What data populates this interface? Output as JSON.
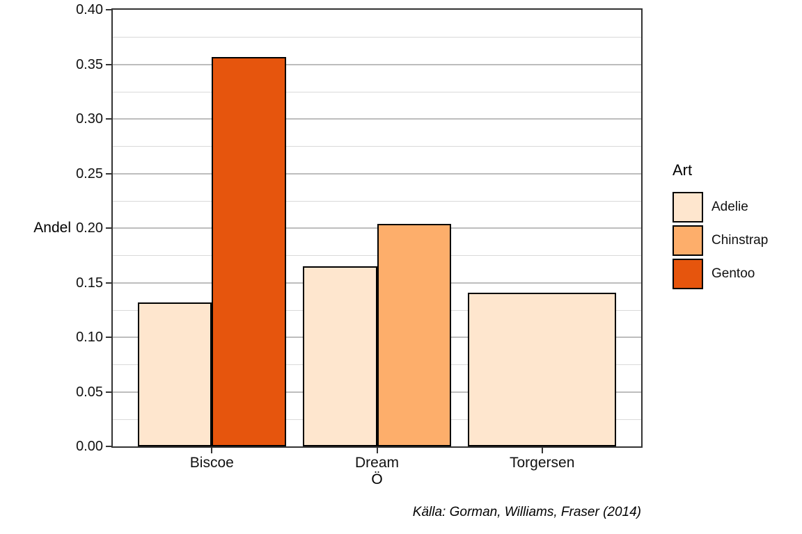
{
  "chart_data": {
    "type": "bar",
    "title": "",
    "xlabel": "Ö",
    "ylabel": "Andel",
    "caption": "Källa: Gorman, Williams, Fraser (2014)",
    "legend_title": "Art",
    "legend_position": "right",
    "grid": true,
    "categories": [
      "Biscoe",
      "Dream",
      "Torgersen"
    ],
    "series": [
      {
        "name": "Adelie",
        "color": "#FEE6CE",
        "values": [
          0.132,
          0.165,
          0.141
        ]
      },
      {
        "name": "Chinstrap",
        "color": "#FDAE6B",
        "values": [
          null,
          0.204,
          null
        ]
      },
      {
        "name": "Gentoo",
        "color": "#E6550D",
        "values": [
          0.357,
          null,
          null
        ]
      }
    ],
    "ylim": [
      0,
      0.4
    ],
    "ytick_step": 0.05,
    "yminor_step": 0.025,
    "ytick_decimals": 2,
    "bar_outline": "#000000",
    "grid_major_color": "#bdbdbd",
    "grid_minor_color": "#d9d9d9",
    "axis_color": "#333333"
  }
}
